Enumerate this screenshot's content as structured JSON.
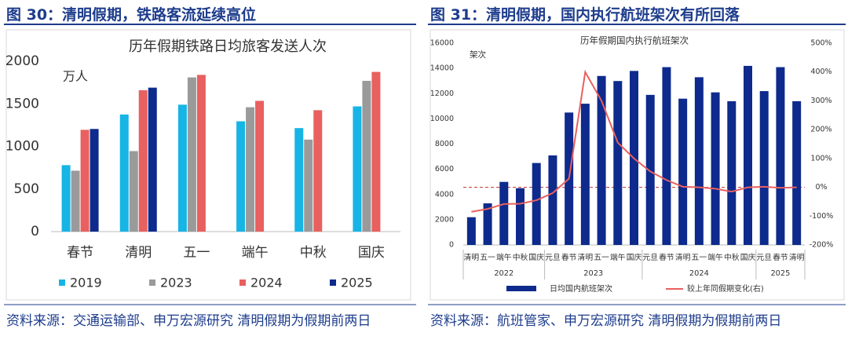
{
  "panels": [
    {
      "heading": "图 30：清明假期，铁路客流延续高位",
      "source": "资料来源：交通运输部、申万宏源研究  清明假期为假期前两日"
    },
    {
      "heading": "图 31：清明假期，国内执行航班架次有所回落",
      "source": "资料来源：航班管家、申万宏源研究  清明假期为假期前两日"
    }
  ],
  "chart_data": [
    {
      "type": "bar",
      "title": "历年假期铁路日均旅客发送人次",
      "unit_label": "万人",
      "categories": [
        "春节",
        "清明",
        "五一",
        "端午",
        "中秋",
        "国庆"
      ],
      "series": [
        {
          "name": "2019",
          "color": "#17b4e6",
          "values": [
            780,
            1375,
            1490,
            1295,
            1215,
            1470
          ]
        },
        {
          "name": "2023",
          "color": "#9a9a9a",
          "values": [
            715,
            945,
            1810,
            1460,
            1080,
            1770
          ]
        },
        {
          "name": "2024",
          "color": "#e8605f",
          "values": [
            1195,
            1660,
            1840,
            1535,
            1425,
            1875
          ]
        },
        {
          "name": "2025",
          "color": "#0d2a8c",
          "values": [
            1205,
            1690,
            null,
            null,
            null,
            null
          ]
        }
      ],
      "ylim": [
        0,
        2000
      ],
      "yticks": [
        0,
        500,
        1000,
        1500,
        2000
      ],
      "grid": false,
      "legend": "bottom"
    },
    {
      "type": "bar",
      "title": "历年假期国内执行航班架次",
      "unit_label": "架次",
      "categories": [
        "清明",
        "五一",
        "端午",
        "中秋",
        "国庆",
        "元旦",
        "春节",
        "清明",
        "五一",
        "端午",
        "国庆",
        "元旦",
        "春节",
        "清明",
        "五一",
        "端午",
        "中秋",
        "国庆",
        "元旦",
        "春节",
        "清明"
      ],
      "category_groups": [
        "2022",
        "2022",
        "2022",
        "2022",
        "2022",
        "2023",
        "2023",
        "2023",
        "2023",
        "2023",
        "2023",
        "2024",
        "2024",
        "2024",
        "2024",
        "2024",
        "2024",
        "2024",
        "2025",
        "2025",
        "2025"
      ],
      "series": [
        {
          "name": "日均国内航班架次",
          "color": "#0d2a8c",
          "values": [
            2200,
            3300,
            5000,
            4500,
            6500,
            7100,
            10500,
            11200,
            13400,
            13000,
            13800,
            11900,
            14100,
            11600,
            13300,
            12100,
            11400,
            14200,
            12200,
            14100,
            11400
          ]
        },
        {
          "name": "较上年同假期变化(右)",
          "type": "line",
          "axis": "y2",
          "color": "#e8605f",
          "values": [
            -85,
            -75,
            -58,
            -57,
            -45,
            -20,
            30,
            400,
            300,
            155,
            100,
            55,
            25,
            2,
            0,
            -5,
            -15,
            0,
            2,
            -2,
            0
          ]
        }
      ],
      "ylim": [
        0,
        16000
      ],
      "yticks": [
        0,
        2000,
        4000,
        6000,
        8000,
        10000,
        12000,
        14000,
        16000
      ],
      "y2lim": [
        -200,
        500
      ],
      "y2ticks": [
        {
          "value": -200,
          "label": "-200%"
        },
        {
          "value": -100,
          "label": "-100%"
        },
        {
          "value": 0,
          "label": "0%"
        },
        {
          "value": 100,
          "label": "100%"
        },
        {
          "value": 200,
          "label": "200%"
        },
        {
          "value": 300,
          "label": "300%"
        },
        {
          "value": 400,
          "label": "400%"
        },
        {
          "value": 500,
          "label": "500%"
        }
      ],
      "grid": false,
      "legend": "bottom"
    }
  ]
}
